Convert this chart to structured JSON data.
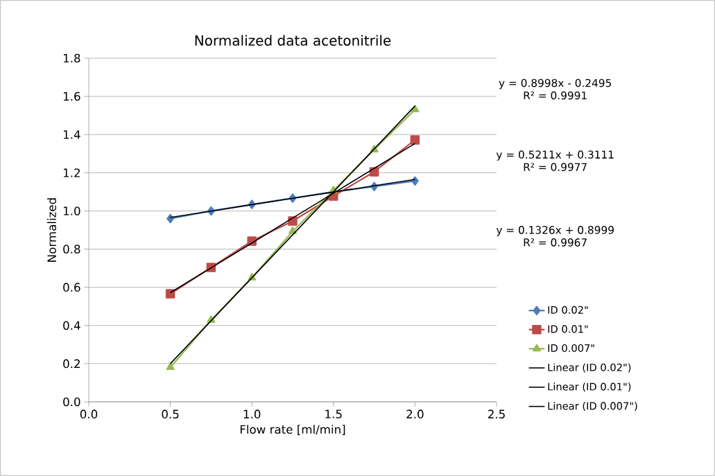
{
  "chart_data": {
    "type": "line",
    "title": "Normalized data acetonitrile",
    "xlabel": "Flow rate [ml/min]",
    "ylabel": "Normalized",
    "x": [
      0.5,
      0.75,
      1.0,
      1.25,
      1.5,
      1.75,
      2.0
    ],
    "series": [
      {
        "name": "ID 0.02\"",
        "color": "#4a7ebb",
        "marker": "diamond",
        "values": [
          0.96,
          1.0,
          1.034,
          1.067,
          1.1,
          1.128,
          1.157
        ]
      },
      {
        "name": "ID 0.01\"",
        "color": "#be4b48",
        "marker": "square",
        "values": [
          0.566,
          0.704,
          0.842,
          0.947,
          1.078,
          1.205,
          1.372
        ]
      },
      {
        "name": "ID 0.007\"",
        "color": "#98b954",
        "marker": "triangle",
        "values": [
          0.181,
          0.428,
          0.65,
          0.893,
          1.107,
          1.321,
          1.531
        ]
      },
      {
        "name": "Linear (ID 0.02\")",
        "type": "line",
        "color": "#000000",
        "marker": "none",
        "values": [
          0.966,
          0.999,
          1.033,
          1.066,
          1.099,
          1.132,
          1.165
        ]
      },
      {
        "name": "Linear (ID 0.01\")",
        "type": "line",
        "color": "#000000",
        "marker": "none",
        "values": [
          0.572,
          0.702,
          0.832,
          0.963,
          1.093,
          1.223,
          1.353
        ]
      },
      {
        "name": "Linear (ID 0.007\")",
        "type": "line",
        "color": "#000000",
        "marker": "none",
        "values": [
          0.2,
          0.425,
          0.65,
          0.875,
          1.1,
          1.325,
          1.55
        ]
      }
    ],
    "xlim": [
      0,
      2.5
    ],
    "ylim": [
      0,
      1.8
    ],
    "xticks": [
      {
        "value": 0,
        "label": "0.0"
      },
      0.5,
      {
        "value": 1,
        "label": "1.0"
      },
      1.5,
      {
        "value": 2,
        "label": "2.0"
      },
      2.5
    ],
    "yticks": [
      {
        "value": 0,
        "label": "0.0"
      },
      0.2,
      0.4,
      0.6,
      0.8,
      {
        "value": 1,
        "label": "1.0"
      },
      1.2,
      1.4,
      1.6,
      1.8
    ],
    "grid": "y",
    "legend": "right",
    "annotations": [
      "y = 0.8998x - 0.2495",
      "R² = 0.9991",
      "y = 0.5211x + 0.3111",
      "R² = 0.9977",
      "y = 0.1326x + 0.8999",
      "R² = 0.9967"
    ]
  }
}
